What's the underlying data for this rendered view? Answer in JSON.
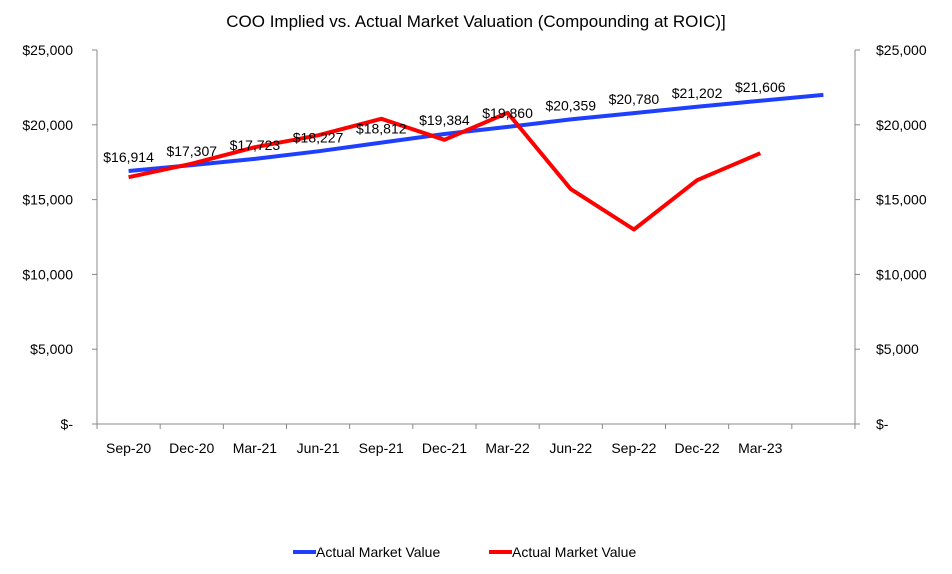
{
  "chart_data": {
    "type": "line",
    "title": "COO Implied vs. Actual Market Valuation (Compounding at ROIC)]",
    "xlabel": "",
    "ylabel": "",
    "categories": [
      "Sep-20",
      "Dec-20",
      "Mar-21",
      "Jun-21",
      "Sep-21",
      "Dec-21",
      "Mar-22",
      "Jun-22",
      "Sep-22",
      "Dec-22",
      "Mar-23",
      ""
    ],
    "ylim": [
      0,
      25000
    ],
    "y_ticks": [
      "$-",
      "$5,000",
      "$10,000",
      "$15,000",
      "$20,000",
      "$25,000"
    ],
    "y_tick_values": [
      0,
      5000,
      10000,
      15000,
      20000,
      25000
    ],
    "secondary_y_ticks": [
      "$-",
      "$5,000",
      "$10,000",
      "$15,000",
      "$20,000",
      "$25,000"
    ],
    "grid": false,
    "legend_position": "bottom",
    "series": [
      {
        "name": "Actual Market Value",
        "color": "#1f3fff",
        "values": [
          16914,
          17307,
          17723,
          18227,
          18812,
          19384,
          19860,
          20359,
          20780,
          21202,
          21606,
          22000
        ],
        "data_labels": [
          "$16,914",
          "$17,307",
          "$17,723",
          "$18,227",
          "$18,812",
          "$19,384",
          "$19,860",
          "$20,359",
          "$20,780",
          "$21,202",
          "$21,606",
          ""
        ]
      },
      {
        "name": "Actual Market Value",
        "color": "#ff0000",
        "values": [
          16500,
          17400,
          18500,
          19300,
          20400,
          19000,
          20800,
          15700,
          13000,
          16300,
          18100,
          null
        ]
      }
    ]
  }
}
